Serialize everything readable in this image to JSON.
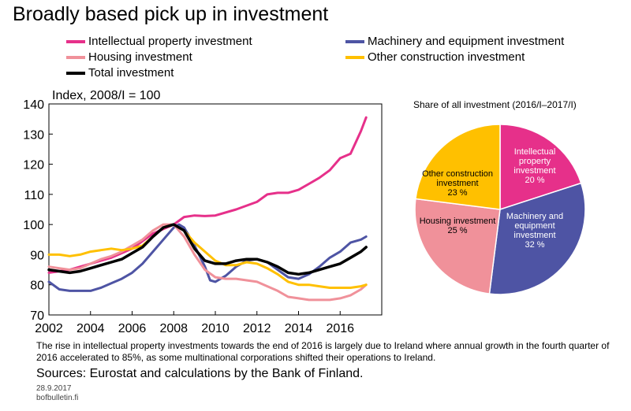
{
  "title": "Broadly based pick up in investment",
  "note": "The rise in intellectual property investments towards the end of 2016 is largely due to Ireland where annual growth in the fourth quarter of 2016 accelerated to 85%, as some multinational corporations shifted their operations to Ireland.",
  "sources": "Sources: Eurostat and calculations by the Bank of Finland.",
  "date": "28.9.2017",
  "site": "bofbulletin.fi",
  "chart_data": [
    {
      "type": "line",
      "ylabel": "Index, 2008/I = 100",
      "ylim": [
        70,
        140
      ],
      "xlim": [
        2002,
        2018
      ],
      "xticks": [
        "2002",
        "2004",
        "2006",
        "2008",
        "2010",
        "2012",
        "2014",
        "2016"
      ],
      "yticks": [
        "70",
        "80",
        "90",
        "100",
        "110",
        "120",
        "130",
        "140"
      ],
      "grid": false,
      "legend_placement": "top",
      "series": [
        {
          "name": "Intellectual property investment",
          "color": "#e6308a",
          "x": [
            2002,
            2003,
            2004,
            2005,
            2006,
            2007,
            2008,
            2008.5,
            2009,
            2009.5,
            2010,
            2011,
            2012,
            2012.5,
            2013,
            2013.5,
            2014,
            2014.5,
            2015,
            2015.5,
            2016,
            2016.5,
            2017,
            2017.25
          ],
          "y": [
            84,
            85,
            87,
            89,
            92,
            97,
            100,
            102.5,
            103,
            102.8,
            103,
            105,
            107.5,
            110,
            110.5,
            110.5,
            111.5,
            113.5,
            115.5,
            118,
            122,
            123.5,
            131,
            135.5
          ]
        },
        {
          "name": "Machinery and equipment investment",
          "color": "#4e54a4",
          "x": [
            2002,
            2002.5,
            2003,
            2003.5,
            2004,
            2004.5,
            2005,
            2005.5,
            2006,
            2006.5,
            2007,
            2007.5,
            2008,
            2008.25,
            2008.5,
            2009,
            2009.5,
            2009.75,
            2010,
            2010.5,
            2011,
            2011.5,
            2012,
            2012.5,
            2013,
            2013.5,
            2014,
            2014.5,
            2015,
            2015.5,
            2016,
            2016.5,
            2017,
            2017.25
          ],
          "y": [
            81,
            78.5,
            78,
            78,
            78,
            79,
            80.5,
            82,
            84,
            87,
            91,
            95,
            99,
            100,
            99,
            93,
            86,
            81.5,
            81,
            83,
            86,
            88,
            88.5,
            87.5,
            85,
            82.5,
            82,
            83.5,
            86,
            89,
            91,
            94,
            95,
            96
          ]
        },
        {
          "name": "Housing investment",
          "color": "#f0919a",
          "x": [
            2002,
            2002.5,
            2003,
            2003.5,
            2004,
            2004.5,
            2005,
            2005.5,
            2006,
            2006.5,
            2007,
            2007.5,
            2008,
            2008.5,
            2009,
            2009.5,
            2010,
            2010.5,
            2011,
            2011.5,
            2012,
            2012.5,
            2013,
            2013.5,
            2014,
            2014.5,
            2015,
            2015.5,
            2016,
            2016.5,
            2017,
            2017.25
          ],
          "y": [
            86,
            85.5,
            85,
            85.5,
            87,
            88.5,
            89.5,
            91,
            93,
            95,
            98,
            100,
            100,
            96,
            90,
            85,
            82.5,
            82,
            82,
            81.5,
            81,
            79.5,
            78,
            76,
            75.5,
            75,
            75,
            75,
            75.5,
            76.5,
            78.5,
            80
          ]
        },
        {
          "name": "Other construction investment",
          "color": "#ffc000",
          "x": [
            2002,
            2002.5,
            2003,
            2003.5,
            2004,
            2004.5,
            2005,
            2005.5,
            2006,
            2006.5,
            2007,
            2007.5,
            2008,
            2008.5,
            2009,
            2009.5,
            2010,
            2010.5,
            2011,
            2011.5,
            2012,
            2012.5,
            2013,
            2013.5,
            2014,
            2014.5,
            2015,
            2015.5,
            2016,
            2016.5,
            2017,
            2017.25
          ],
          "y": [
            90,
            90,
            89.5,
            90,
            91,
            91.5,
            92,
            91.5,
            92,
            93,
            96,
            99,
            100,
            98,
            94,
            91,
            88,
            86.5,
            86.5,
            87.5,
            87,
            85.5,
            83.5,
            81,
            80,
            80,
            79.5,
            79,
            79,
            79,
            79.5,
            80
          ]
        },
        {
          "name": "Total investment",
          "color": "#000000",
          "x": [
            2002,
            2002.5,
            2003,
            2003.5,
            2004,
            2004.5,
            2005,
            2005.5,
            2006,
            2006.5,
            2007,
            2007.5,
            2008,
            2008.5,
            2009,
            2009.5,
            2010,
            2010.5,
            2011,
            2011.5,
            2012,
            2012.5,
            2013,
            2013.5,
            2014,
            2014.5,
            2015,
            2015.5,
            2016,
            2016.5,
            2017,
            2017.25
          ],
          "y": [
            85,
            84.5,
            84,
            84.5,
            85.5,
            86.5,
            87.5,
            88.5,
            90.5,
            92.5,
            96,
            99,
            100,
            98,
            92,
            88,
            87,
            87,
            88,
            88.5,
            88.5,
            87.5,
            86,
            84,
            83.5,
            84,
            85,
            86,
            87,
            89,
            91,
            92.5
          ]
        }
      ]
    },
    {
      "type": "pie",
      "title": "Share of all investment (2016/I–2017/I)",
      "slices": [
        {
          "label": "Intellectual\nproperty\ninvestment",
          "value": 20,
          "value_label": "20 %",
          "color": "#e6308a"
        },
        {
          "label": "Machinery and\nequipment\ninvestment",
          "value": 32,
          "value_label": "32 %",
          "color": "#4e54a4"
        },
        {
          "label": "Housing investment",
          "value": 25,
          "value_label": "25 %",
          "color": "#f0919a"
        },
        {
          "label": "Other construction\ninvestment",
          "value": 23,
          "value_label": "23 %",
          "color": "#ffc000"
        }
      ]
    }
  ]
}
